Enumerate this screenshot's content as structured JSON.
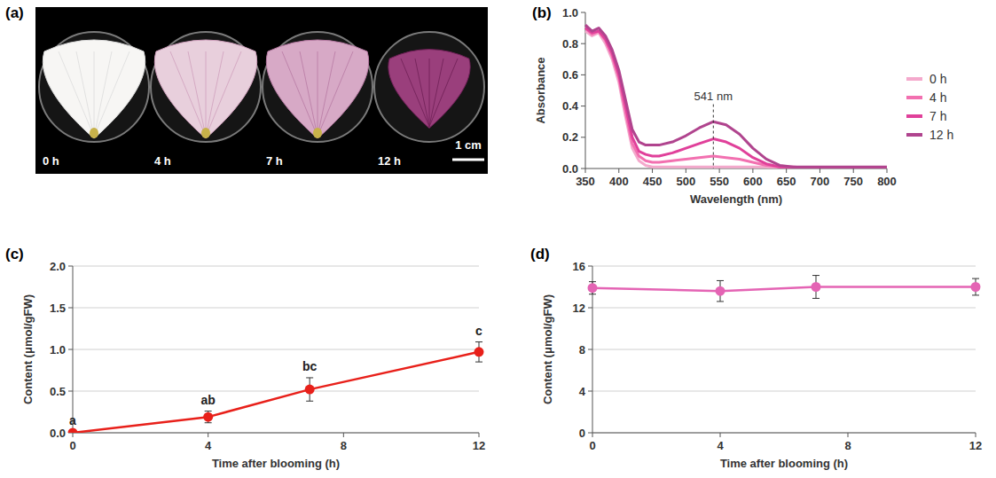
{
  "photos": {
    "title": "(a)",
    "items": [
      "0 h",
      "4 h",
      "7 h",
      "12 h"
    ],
    "scale_bar": "1 cm"
  },
  "chart_data": [
    {
      "type": "line",
      "title": "(b)",
      "x_label": "Wavelength (nm)",
      "y_label": "Absorbance",
      "x": [
        350,
        360,
        370,
        380,
        390,
        400,
        410,
        420,
        430,
        440,
        450,
        460,
        480,
        500,
        520,
        541,
        560,
        580,
        600,
        620,
        640,
        660,
        700,
        750,
        800
      ],
      "series": [
        {
          "name": "0 h",
          "color": "#f4a9cc",
          "values": [
            0.88,
            0.85,
            0.87,
            0.8,
            0.7,
            0.55,
            0.33,
            0.13,
            0.05,
            0.02,
            0.01,
            0.01,
            0.01,
            0.01,
            0.01,
            0.01,
            0.01,
            0.01,
            0.01,
            0.01,
            0.0,
            0.0,
            0.0,
            0.0,
            0.0
          ]
        },
        {
          "name": "4 h",
          "color": "#f270b0",
          "values": [
            0.9,
            0.86,
            0.88,
            0.82,
            0.72,
            0.58,
            0.36,
            0.16,
            0.08,
            0.05,
            0.04,
            0.04,
            0.05,
            0.06,
            0.07,
            0.08,
            0.07,
            0.06,
            0.04,
            0.02,
            0.01,
            0.0,
            0.0,
            0.0,
            0.0
          ]
        },
        {
          "name": "7 h",
          "color": "#e0409a",
          "values": [
            0.9,
            0.87,
            0.88,
            0.83,
            0.74,
            0.6,
            0.4,
            0.2,
            0.11,
            0.09,
            0.08,
            0.08,
            0.1,
            0.13,
            0.16,
            0.19,
            0.17,
            0.13,
            0.07,
            0.03,
            0.01,
            0.01,
            0.0,
            0.0,
            0.0
          ]
        },
        {
          "name": "12 h",
          "color": "#b0448e",
          "values": [
            0.92,
            0.88,
            0.9,
            0.85,
            0.76,
            0.63,
            0.44,
            0.25,
            0.17,
            0.15,
            0.15,
            0.15,
            0.17,
            0.21,
            0.26,
            0.3,
            0.28,
            0.22,
            0.13,
            0.06,
            0.02,
            0.01,
            0.01,
            0.01,
            0.01
          ]
        }
      ],
      "marker": "none",
      "xlim": [
        350,
        800
      ],
      "xticks": [
        350,
        400,
        450,
        500,
        550,
        600,
        650,
        700,
        750,
        800
      ],
      "ylim": [
        0,
        1
      ],
      "yticks": [
        {
          "value": 0,
          "label": "0.0"
        },
        0.2,
        0.4,
        0.6,
        0.8,
        {
          "value": 1,
          "label": "1.0"
        }
      ],
      "grid": false,
      "legend": "right",
      "annotations": [
        {
          "text": "541 nm",
          "x": 541
        }
      ]
    },
    {
      "type": "line",
      "title": "(c)",
      "x_label": "Time after blooming (h)",
      "y_label": "Content (μmol/gFW)",
      "x": [
        0,
        4,
        7,
        12
      ],
      "series": [
        {
          "name": null,
          "color": "#e8201a",
          "values": [
            0.0,
            0.19,
            0.52,
            0.97
          ],
          "errors": [
            0.01,
            0.07,
            0.14,
            0.12
          ]
        }
      ],
      "marker": "circle",
      "xlim": [
        0,
        12
      ],
      "xticks": [
        0,
        4,
        8,
        12
      ],
      "ylim": [
        0,
        2
      ],
      "yticks": [
        {
          "value": 0,
          "label": "0.0"
        },
        0.5,
        {
          "value": 1,
          "label": "1.0"
        },
        1.5,
        {
          "value": 2,
          "label": "2.0"
        }
      ],
      "grid": true,
      "annotations": [
        "a",
        "ab",
        "bc",
        "c"
      ]
    },
    {
      "type": "line",
      "title": "(d)",
      "x_label": "Time after blooming (h)",
      "y_label": "Content (μmol/gFW)",
      "x": [
        0,
        4,
        7,
        12
      ],
      "series": [
        {
          "name": null,
          "color": "#e464b4",
          "values": [
            13.9,
            13.6,
            14.0,
            14.0
          ],
          "errors": [
            0.6,
            1.0,
            1.1,
            0.8
          ]
        }
      ],
      "marker": "circle",
      "xlim": [
        0,
        12
      ],
      "xticks": [
        0,
        4,
        8,
        12
      ],
      "ylim": [
        0,
        16
      ],
      "yticks": [
        0,
        4,
        8,
        12,
        16
      ],
      "grid": true
    }
  ]
}
